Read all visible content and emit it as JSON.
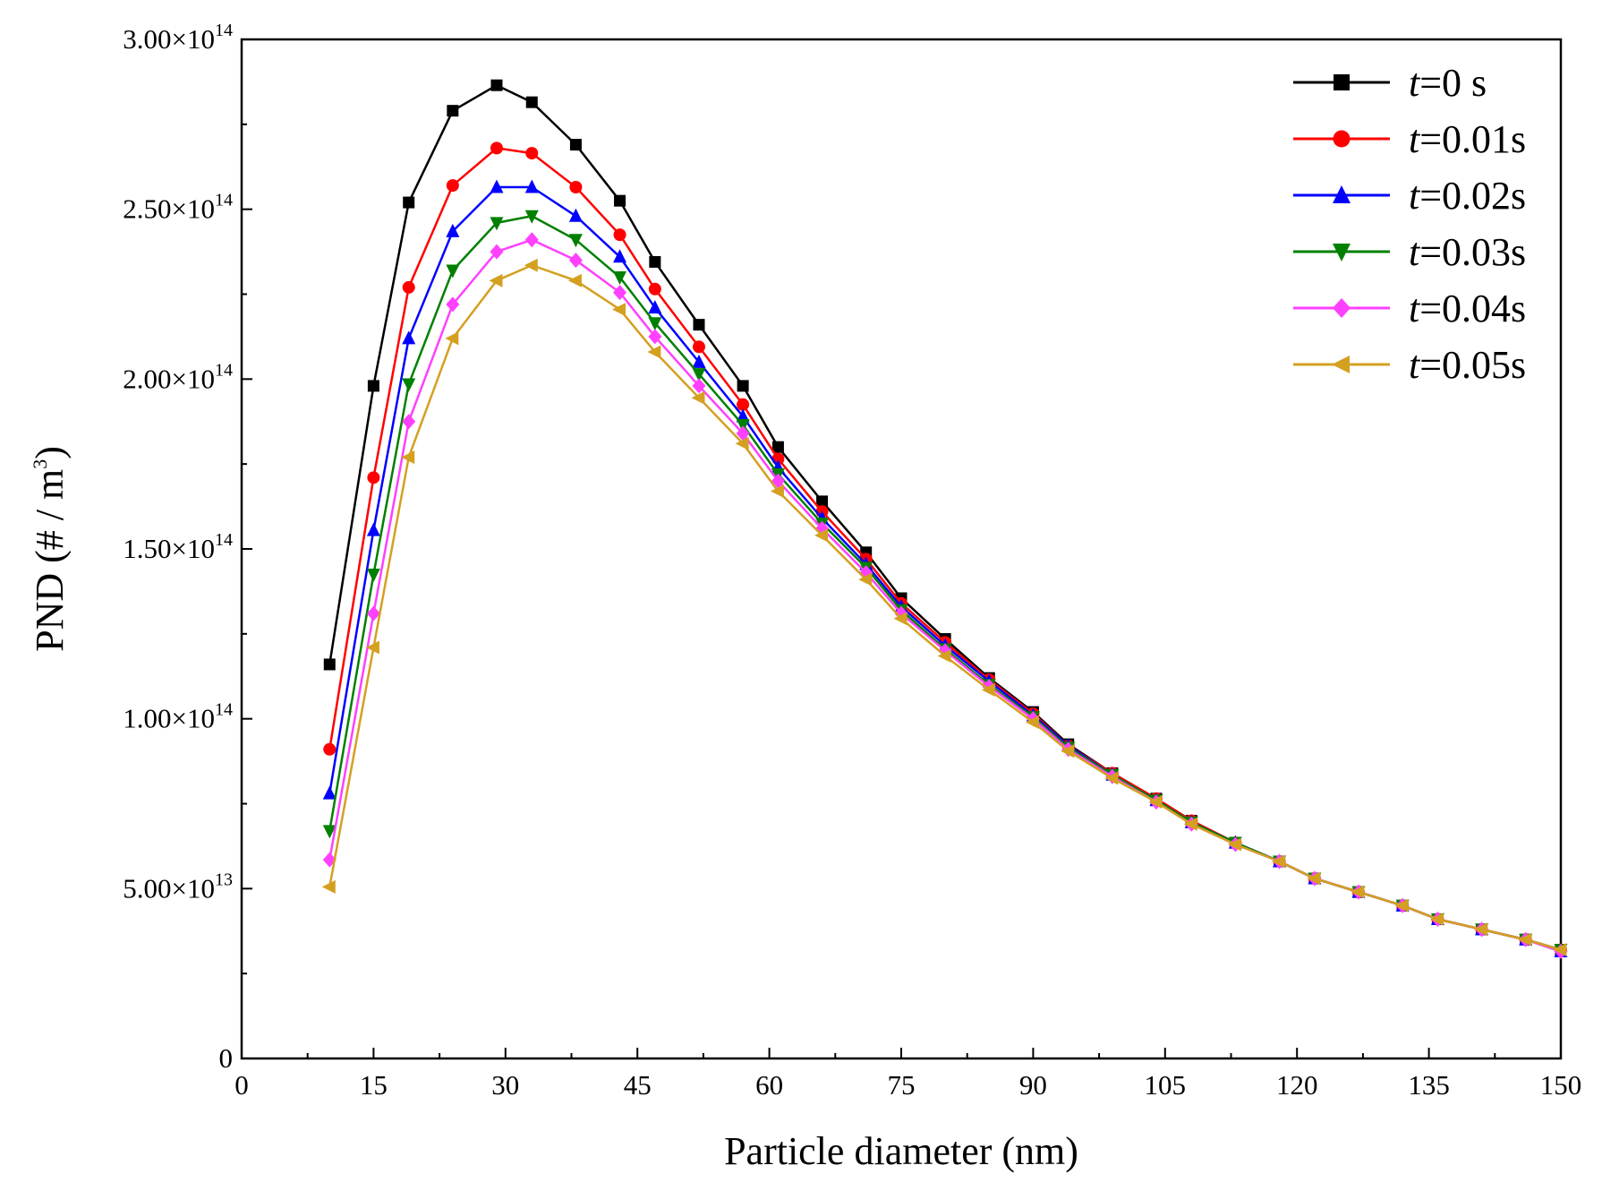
{
  "chart_data": {
    "type": "line",
    "title": "",
    "xlabel": "Particle diameter (nm)",
    "ylabel": {
      "prefix": "PND (# / m",
      "sup": "3",
      "suffix": ")"
    },
    "xlim": [
      0,
      150
    ],
    "ylim": [
      0,
      300000000000000.0
    ],
    "x_ticks": [
      0,
      15,
      30,
      45,
      60,
      75,
      90,
      105,
      120,
      135,
      150
    ],
    "y_ticks": [
      {
        "value": 0,
        "mantissa": "0",
        "exponent": ""
      },
      {
        "value": 50000000000000.0,
        "mantissa": "5.00×10",
        "exponent": "13"
      },
      {
        "value": 100000000000000.0,
        "mantissa": "1.00×10",
        "exponent": "14"
      },
      {
        "value": 150000000000000.0,
        "mantissa": "1.50×10",
        "exponent": "14"
      },
      {
        "value": 200000000000000.0,
        "mantissa": "2.00×10",
        "exponent": "14"
      },
      {
        "value": 250000000000000.0,
        "mantissa": "2.50×10",
        "exponent": "14"
      },
      {
        "value": 300000000000000.0,
        "mantissa": "3.00×10",
        "exponent": "14"
      }
    ],
    "grid": false,
    "legend_position": "top-right",
    "x": [
      10,
      15,
      19,
      24,
      29,
      33,
      38,
      43,
      47,
      52,
      57,
      61,
      66,
      71,
      75,
      80,
      85,
      90,
      94,
      99,
      104,
      108,
      113,
      118,
      122,
      127,
      132,
      136,
      141,
      146,
      150
    ],
    "series": [
      {
        "name": "t=0 s",
        "italic": "t",
        "rest": "=0 s",
        "color": "#000000",
        "marker": "square",
        "values": [
          116000000000000.0,
          198000000000000.0,
          252000000000000.0,
          279000000000000.0,
          286500000000000.0,
          281500000000000.0,
          269000000000000.0,
          252500000000000.0,
          234500000000000.0,
          216000000000000.0,
          198000000000000.0,
          180000000000000.0,
          164000000000000.0,
          149000000000000.0,
          135500000000000.0,
          123500000000000.0,
          112000000000000.0,
          102000000000000.0,
          92500000000000.0,
          84000000000000.0,
          76500000000000.0,
          70000000000000.0,
          63500000000000.0,
          58000000000000.0,
          53000000000000.0,
          49000000000000.0,
          45000000000000.0,
          41000000000000.0,
          38000000000000.0,
          35000000000000.0,
          32000000000000.0
        ]
      },
      {
        "name": "t=0.01s",
        "italic": "t",
        "rest": "=0.01s",
        "color": "#ff0000",
        "marker": "circle",
        "values": [
          91000000000000.0,
          171000000000000.0,
          227000000000000.0,
          257000000000000.0,
          268000000000000.0,
          266500000000000.0,
          256500000000000.0,
          242500000000000.0,
          226500000000000.0,
          209500000000000.0,
          192500000000000.0,
          176500000000000.0,
          161000000000000.0,
          147000000000000.0,
          134000000000000.0,
          122500000000000.0,
          111500000000000.0,
          101500000000000.0,
          92000000000000.0,
          84000000000000.0,
          76500000000000.0,
          70000000000000.0,
          63500000000000.0,
          58000000000000.0,
          53000000000000.0,
          49000000000000.0,
          45000000000000.0,
          41000000000000.0,
          38000000000000.0,
          35000000000000.0,
          32000000000000.0
        ]
      },
      {
        "name": "t=0.02s",
        "italic": "t",
        "rest": "=0.02s",
        "color": "#0000ff",
        "marker": "triangle-up",
        "values": [
          78000000000000.0,
          155500000000000.0,
          212000000000000.0,
          243500000000000.0,
          256500000000000.0,
          256500000000000.0,
          248000000000000.0,
          236000000000000.0,
          221000000000000.0,
          205000000000000.0,
          189000000000000.0,
          174000000000000.0,
          159000000000000.0,
          145500000000000.0,
          133000000000000.0,
          121500000000000.0,
          111000000000000.0,
          101000000000000.0,
          92000000000000.0,
          83500000000000.0,
          76000000000000.0,
          69500000000000.0,
          63500000000000.0,
          58000000000000.0,
          53000000000000.0,
          49000000000000.0,
          45000000000000.0,
          41000000000000.0,
          38000000000000.0,
          35000000000000.0,
          31500000000000.0
        ]
      },
      {
        "name": "t=0.03s",
        "italic": "t",
        "rest": "=0.03s",
        "color": "#008000",
        "marker": "triangle-down",
        "values": [
          67000000000000.0,
          142500000000000.0,
          198500000000000.0,
          232000000000000.0,
          246000000000000.0,
          248000000000000.0,
          241000000000000.0,
          230000000000000.0,
          216500000000000.0,
          201500000000000.0,
          186500000000000.0,
          172000000000000.0,
          157500000000000.0,
          144500000000000.0,
          132000000000000.0,
          120500000000000.0,
          110000000000000.0,
          100500000000000.0,
          91500000000000.0,
          83500000000000.0,
          76000000000000.0,
          69500000000000.0,
          63500000000000.0,
          58000000000000.0,
          53000000000000.0,
          49000000000000.0,
          45000000000000.0,
          41000000000000.0,
          38000000000000.0,
          35000000000000.0,
          32000000000000.0
        ]
      },
      {
        "name": "t=0.04s",
        "italic": "t",
        "rest": "=0.04s",
        "color": "#ff40ff",
        "marker": "diamond",
        "values": [
          58500000000000.0,
          131000000000000.0,
          187500000000000.0,
          222000000000000.0,
          237500000000000.0,
          241000000000000.0,
          235000000000000.0,
          225500000000000.0,
          212500000000000.0,
          198000000000000.0,
          184000000000000.0,
          170000000000000.0,
          156000000000000.0,
          143000000000000.0,
          131000000000000.0,
          120000000000000.0,
          109500000000000.0,
          100000000000000.0,
          91000000000000.0,
          83000000000000.0,
          75500000000000.0,
          69000000000000.0,
          63000000000000.0,
          58000000000000.0,
          53000000000000.0,
          49000000000000.0,
          45000000000000.0,
          41000000000000.0,
          38000000000000.0,
          35000000000000.0,
          31500000000000.0
        ]
      },
      {
        "name": "t=0.05s",
        "italic": "t",
        "rest": "=0.05s",
        "color": "#d4a020",
        "marker": "triangle-left",
        "values": [
          50500000000000.0,
          121000000000000.0,
          177000000000000.0,
          212000000000000.0,
          229000000000000.0,
          233500000000000.0,
          229000000000000.0,
          220500000000000.0,
          208000000000000.0,
          194500000000000.0,
          181000000000000.0,
          167000000000000.0,
          154000000000000.0,
          141000000000000.0,
          129500000000000.0,
          118500000000000.0,
          108500000000000.0,
          99000000000000.0,
          90500000000000.0,
          82500000000000.0,
          75500000000000.0,
          69000000000000.0,
          63000000000000.0,
          58000000000000.0,
          53000000000000.0,
          49000000000000.0,
          45000000000000.0,
          41000000000000.0,
          38000000000000.0,
          35000000000000.0,
          32000000000000.0
        ]
      }
    ]
  }
}
